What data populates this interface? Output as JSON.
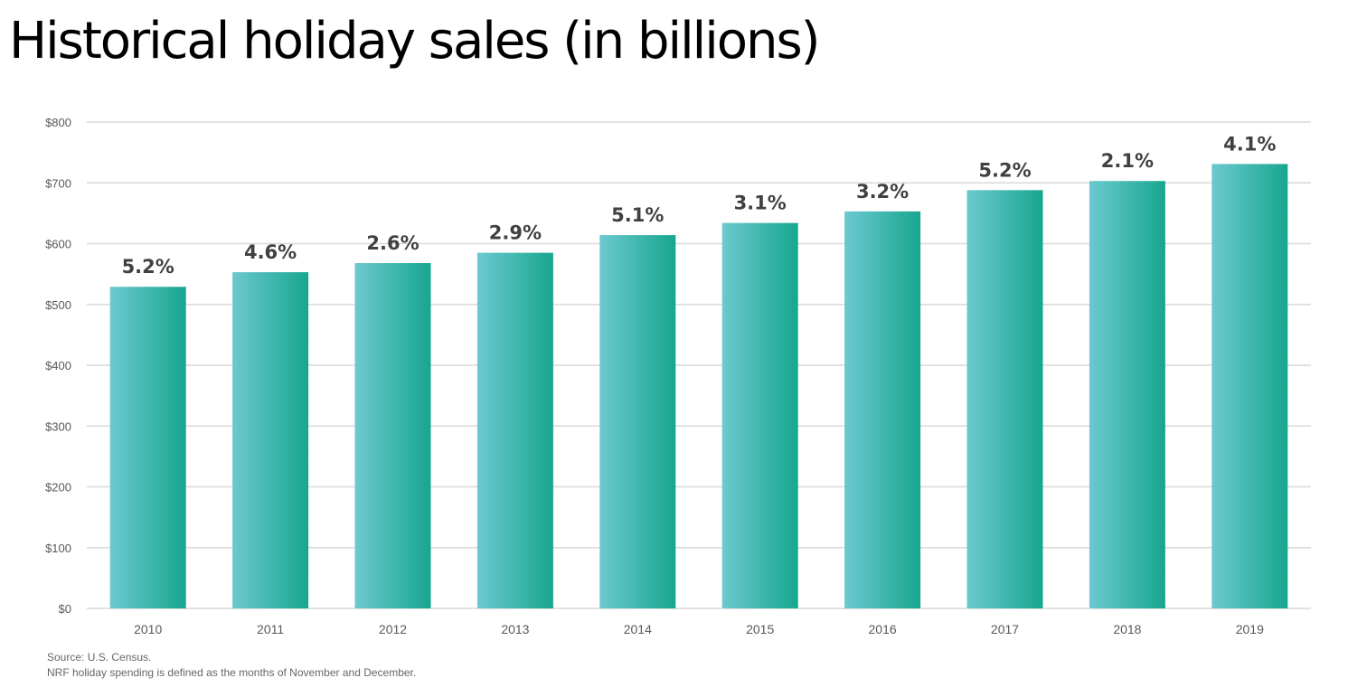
{
  "chart_data": {
    "type": "bar",
    "title": "Historical holiday sales (in billions)",
    "xlabel": "",
    "ylabel": "",
    "categories": [
      "2010",
      "2011",
      "2012",
      "2013",
      "2014",
      "2015",
      "2016",
      "2017",
      "2018",
      "2019"
    ],
    "values": [
      529,
      553,
      568,
      585,
      614,
      634,
      653,
      688,
      703,
      731
    ],
    "data_labels": [
      "5.2%",
      "4.6%",
      "2.6%",
      "2.9%",
      "5.1%",
      "3.1%",
      "3.2%",
      "5.2%",
      "2.1%",
      "4.1%"
    ],
    "ylim": [
      0,
      800
    ],
    "yticks": [
      0,
      100,
      200,
      300,
      400,
      500,
      600,
      700,
      800
    ],
    "ytick_labels": [
      "$0",
      "$100",
      "$200",
      "$300",
      "$400",
      "$500",
      "$600",
      "$700",
      "$800"
    ],
    "grid": true,
    "legend": "none",
    "colors": {
      "bar_light": "#6cc9cf",
      "bar_dark": "#17a68f",
      "grid": "#d9d9d9",
      "axis_text": "#595959",
      "label_text": "#404040"
    }
  },
  "footnotes": {
    "source": "Source: U.S. Census.",
    "definition": "NRF holiday spending is defined as the months of November and December."
  }
}
